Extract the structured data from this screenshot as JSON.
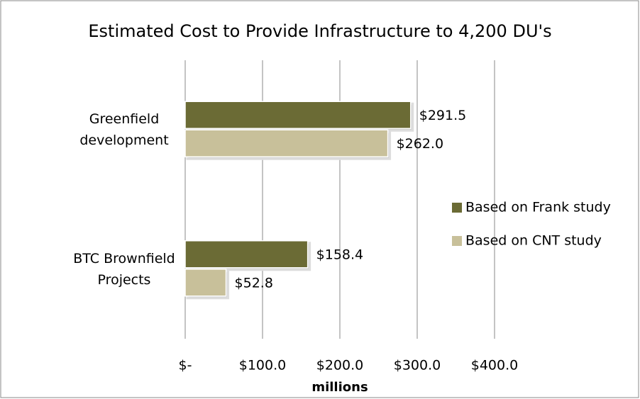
{
  "chart_data": {
    "type": "hbar",
    "title": "Estimated Cost to Provide Infrastructure to 4,200 DU's",
    "categories": [
      "Greenfield development",
      "BTC Brownfield Projects"
    ],
    "series": [
      {
        "name": "Based on Frank study",
        "color": "#6b6b35",
        "values": [
          291.5,
          158.4
        ],
        "value_labels": [
          "$291.5",
          "$158.4"
        ]
      },
      {
        "name": "Based on CNT study",
        "color": "#c8c09a",
        "values": [
          262.0,
          52.8
        ],
        "value_labels": [
          "$262.0",
          "$52.8"
        ]
      }
    ],
    "xlim": [
      0,
      400
    ],
    "xticks": [
      {
        "value": 0,
        "label": "$-"
      },
      {
        "value": 100,
        "label": "$100.0"
      },
      {
        "value": 200,
        "label": "$200.0"
      },
      {
        "value": 300,
        "label": "$300.0"
      },
      {
        "value": 400,
        "label": "$400.0"
      }
    ],
    "xlabel": "millions",
    "grid": true,
    "legend": "right"
  }
}
